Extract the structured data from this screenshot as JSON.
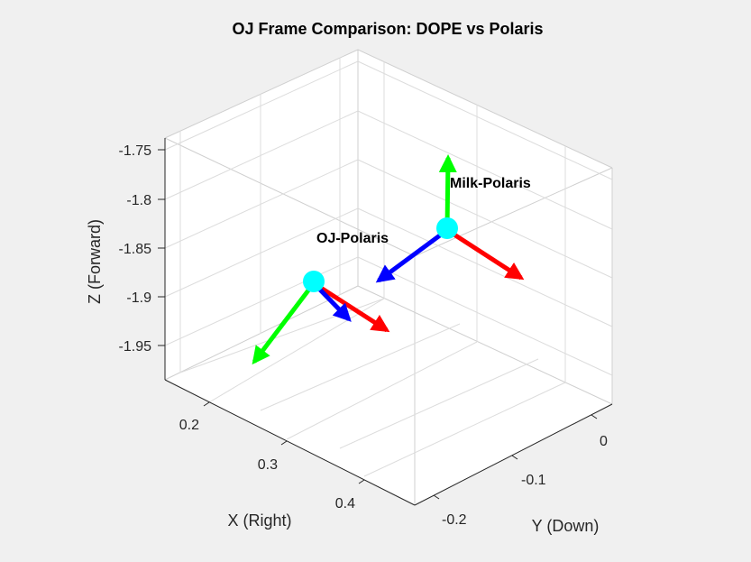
{
  "chart_data": {
    "type": "3d-frame-plot",
    "title": "OJ Frame Comparison: DOPE vs Polaris",
    "xlabel": "X (Right)",
    "ylabel": "Y (Down)",
    "zlabel": "Z (Forward)",
    "x_ticks": [
      "0.2",
      "0.3",
      "0.4"
    ],
    "y_ticks": [
      "0",
      "-0.1",
      "-0.2"
    ],
    "z_ticks": [
      "-1.75",
      "-1.8",
      "-1.85",
      "-1.9",
      "-1.95"
    ],
    "frames": [
      {
        "name": "OJ-Polaris",
        "label": "OJ-Polaris",
        "origin_color": "#00ffff",
        "axes": [
          {
            "axis": "x",
            "color": "#ff0000"
          },
          {
            "axis": "y",
            "color": "#0000ff"
          },
          {
            "axis": "z",
            "color": "#00ff00"
          }
        ]
      },
      {
        "name": "Milk-Polaris",
        "label": "Milk-Polaris",
        "origin_color": "#00ffff",
        "axes": [
          {
            "axis": "x",
            "color": "#ff0000"
          },
          {
            "axis": "y",
            "color": "#0000ff"
          },
          {
            "axis": "z",
            "color": "#00ff00"
          }
        ]
      }
    ],
    "grid": true,
    "view": "3d-isometric"
  },
  "colors": {
    "background": "#f0f0f0",
    "plot_background": "#ffffff",
    "axis_x": "#ff0000",
    "axis_y": "#0000ff",
    "axis_z": "#00ff00",
    "origin": "#00ffff"
  }
}
